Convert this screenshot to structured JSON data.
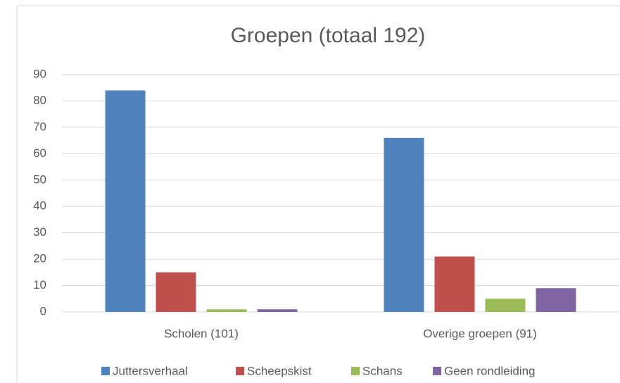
{
  "chart_data": {
    "type": "bar",
    "title": "Groepen (totaal 192)",
    "categories": [
      "Scholen (101)",
      "Overige groepen (91)"
    ],
    "series": [
      {
        "name": "Juttersverhaal",
        "color": "#4f81bd",
        "values": [
          84,
          66
        ]
      },
      {
        "name": "Scheepskist",
        "color": "#c0504d",
        "values": [
          15,
          21
        ]
      },
      {
        "name": "Schans",
        "color": "#9bbb59",
        "values": [
          1,
          5
        ]
      },
      {
        "name": "Geen rondleiding",
        "color": "#8064a2",
        "values": [
          1,
          9
        ]
      }
    ],
    "ylim": [
      0,
      90
    ],
    "yticks": [
      0,
      10,
      20,
      30,
      40,
      50,
      60,
      70,
      80,
      90
    ],
    "grid": true,
    "legend": "bottom"
  }
}
